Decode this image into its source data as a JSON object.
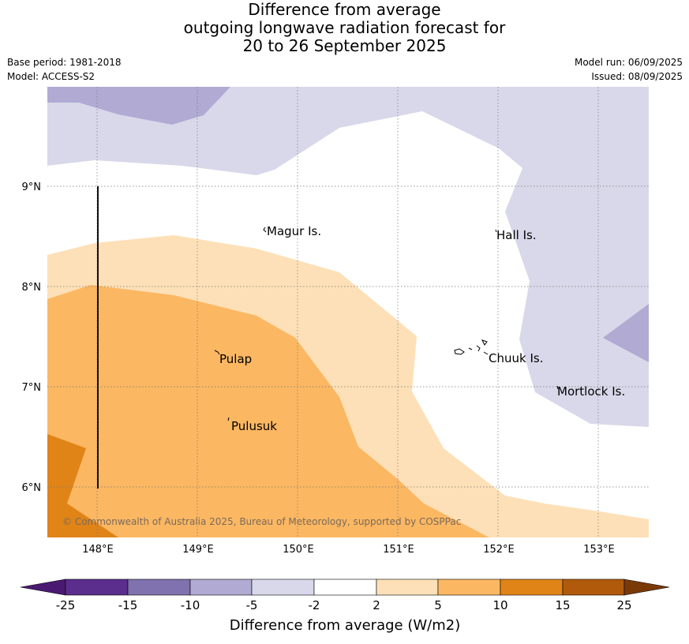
{
  "title": {
    "line1": "Difference from average",
    "line2": "outgoing longwave radiation forecast for",
    "line3": "20 to 26 September 2025"
  },
  "meta": {
    "base_period": "Base period: 1981-2018",
    "model": "Model: ACCESS-S2",
    "model_run": "Model run: 06/09/2025",
    "issued": "Issued: 08/09/2025"
  },
  "map": {
    "lat_labels": [
      "9°N",
      "8°N",
      "7°N",
      "6°N"
    ],
    "lon_labels": [
      "148°E",
      "149°E",
      "150°E",
      "151°E",
      "152°E",
      "153°E"
    ],
    "places": [
      "Magur Is.",
      "Hall Is.",
      "Pulap",
      "Chuuk Is.",
      "Mortlock Is.",
      "Pulusuk"
    ],
    "copyright": "© Commonwealth of Australia 2025, Bureau of Meteorology, supported by COSPPac"
  },
  "colorbar": {
    "labels": [
      "-25",
      "-15",
      "-10",
      "-5",
      "-2",
      "2",
      "5",
      "10",
      "15",
      "25"
    ],
    "colors": [
      "#4a1a72",
      "#5b2d8c",
      "#8072ae",
      "#b1aad2",
      "#d8d8ea",
      "#ffffff",
      "#fde0b7",
      "#fbb762",
      "#e08418",
      "#b15a0c",
      "#7a3a08"
    ],
    "title": "Difference from average (W/m2)"
  }
}
